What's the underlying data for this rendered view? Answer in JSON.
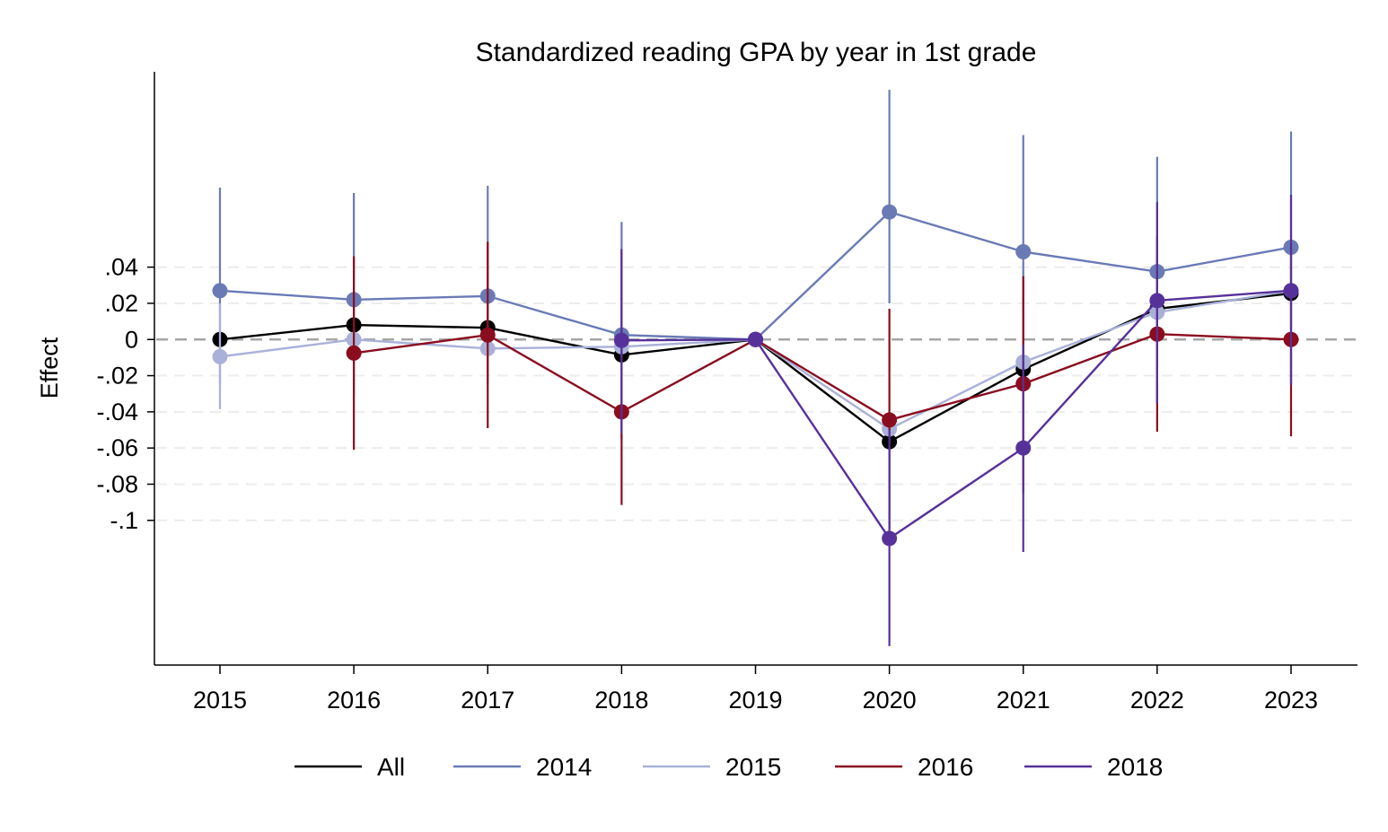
{
  "chart_data": {
    "type": "line",
    "title": "Standardized reading GPA by year in 1st grade",
    "xlabel": "",
    "ylabel": "Effect",
    "x": [
      2015,
      2016,
      2017,
      2018,
      2019,
      2020,
      2021,
      2022,
      2023
    ],
    "x_tick_labels": [
      "2015",
      "2016",
      "2017",
      "2018",
      "2019",
      "2020",
      "2021",
      "2022",
      "2023"
    ],
    "y_ticks": [
      0.04,
      0.02,
      0,
      -0.02,
      -0.04,
      -0.06,
      -0.08,
      -0.1
    ],
    "y_tick_labels": [
      ".04",
      ".02",
      "0",
      "-.02",
      "-.04",
      "-.06",
      "-.08",
      "-.1"
    ],
    "ylim": [
      -0.18,
      0.148
    ],
    "xlim": [
      2014.5,
      2023.5
    ],
    "grid": true,
    "reference_line": 0,
    "legend_position": "bottom",
    "series": [
      {
        "name": "All",
        "color": "#000000",
        "values": [
          0.0,
          0.008,
          0.0065,
          -0.0085,
          0.0,
          -0.0565,
          -0.0165,
          0.017,
          0.0255
        ],
        "ci_low": [
          null,
          null,
          null,
          null,
          null,
          null,
          null,
          null,
          null
        ],
        "ci_high": [
          null,
          null,
          null,
          null,
          null,
          null,
          null,
          null,
          null
        ]
      },
      {
        "name": "2014",
        "color": "#6a7ab5",
        "values": [
          0.027,
          0.022,
          0.024,
          0.0025,
          0.0,
          0.0705,
          0.0485,
          0.0375,
          0.051
        ],
        "ci_low": [
          -0.025,
          -0.03,
          -0.025,
          -0.055,
          null,
          0.02,
          -0.01,
          -0.035,
          -0.025
        ],
        "ci_high": [
          0.084,
          0.081,
          0.085,
          0.065,
          null,
          0.138,
          0.113,
          0.101,
          0.115
        ]
      },
      {
        "name": "2015",
        "color": "#a9b1d8",
        "values": [
          -0.0095,
          0.0,
          -0.005,
          -0.004,
          0.0,
          -0.0495,
          -0.0125,
          0.015,
          0.027
        ],
        "ci_low": [
          -0.0385,
          null,
          null,
          null,
          null,
          null,
          null,
          null,
          null
        ],
        "ci_high": [
          0.02,
          null,
          null,
          null,
          null,
          null,
          null,
          null,
          null
        ]
      },
      {
        "name": "2016",
        "color": "#8a0c1f",
        "values": [
          null,
          -0.0075,
          0.0025,
          -0.04,
          0.0,
          -0.0445,
          -0.0245,
          0.003,
          0.0
        ],
        "ci_low": [
          null,
          -0.061,
          -0.049,
          -0.0915,
          null,
          -0.105,
          -0.085,
          -0.051,
          -0.0535
        ],
        "ci_high": [
          null,
          0.046,
          0.054,
          0.05,
          null,
          0.017,
          0.035,
          0.057,
          0.053
        ]
      },
      {
        "name": "2018",
        "color": "#56319a",
        "values": [
          null,
          null,
          null,
          -0.0005,
          0.0,
          -0.11,
          -0.06,
          0.0215,
          0.027
        ],
        "ci_low": [
          null,
          null,
          null,
          -0.052,
          null,
          -0.1695,
          -0.1175,
          -0.035,
          -0.025
        ],
        "ci_high": [
          null,
          null,
          null,
          0.05,
          null,
          -0.05,
          -0.003,
          0.076,
          0.08
        ]
      }
    ]
  }
}
